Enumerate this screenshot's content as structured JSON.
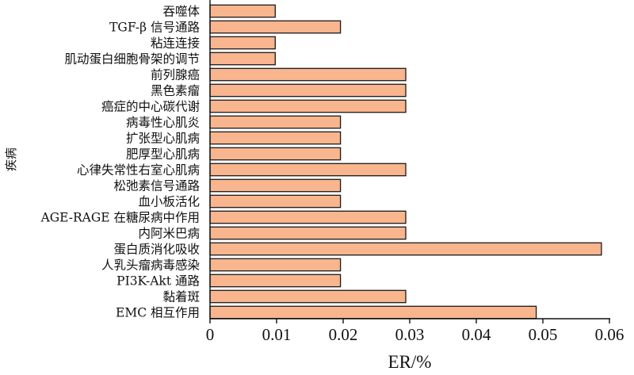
{
  "chart_data": {
    "type": "bar",
    "orientation": "horizontal",
    "xlabel": "ER/%",
    "ylabel": "疾病",
    "xlim": [
      0,
      0.06
    ],
    "xticks": [
      "0",
      "0.01",
      "0.02",
      "0.03",
      "0.04",
      "0.05",
      "0.06"
    ],
    "grid": false,
    "bar_color": "#f8b58e",
    "categories": [
      "吞噬体",
      "TGF-β 信号通路",
      "粘连连接",
      "肌动蛋白细胞骨架的调节",
      "前列腺癌",
      "黑色素瘤",
      "癌症的中心碳代谢",
      "病毒性心肌炎",
      "扩张型心肌病",
      "肥厚型心肌病",
      "心律失常性右室心肌病",
      "松弛素信号通路",
      "血小板活化",
      "AGE-RAGE 在糖尿病中作用",
      "内阿米巴病",
      "蛋白质消化吸收",
      "人乳头瘤病毒感染",
      "PI3K-Akt 通路",
      "黏着斑",
      "EMC 相互作用"
    ],
    "values": [
      0.0098,
      0.0196,
      0.0098,
      0.0098,
      0.0294,
      0.0294,
      0.0294,
      0.0196,
      0.0196,
      0.0196,
      0.0294,
      0.0196,
      0.0196,
      0.0294,
      0.0294,
      0.0588,
      0.0196,
      0.0196,
      0.0294,
      0.049
    ]
  }
}
